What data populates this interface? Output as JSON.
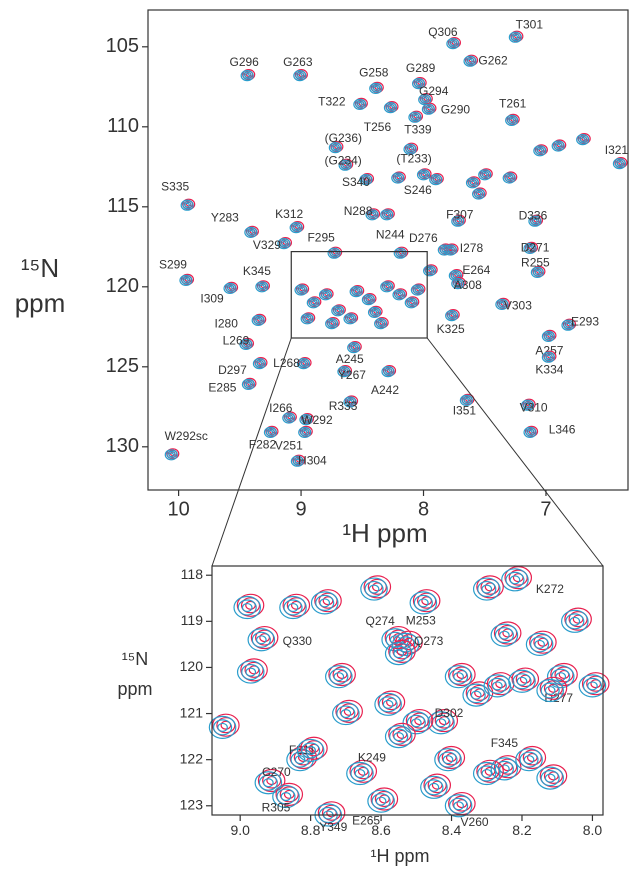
{
  "chart_data": [
    {
      "type": "scatter",
      "x_label": "¹H ppm",
      "y_label": [
        "¹⁵N",
        "ppm"
      ],
      "xlim": [
        10.25,
        6.33
      ],
      "ylim": [
        102.7,
        132.7
      ],
      "xticks": [
        10,
        9,
        8,
        7
      ],
      "yticks": [
        105,
        110,
        115,
        120,
        125,
        130
      ],
      "colors": [
        "#e8204f",
        "#2a9dcc"
      ],
      "labels": [
        "T301",
        "Q306",
        "G262",
        "G296",
        "G263",
        "G258",
        "G289",
        "G294",
        "T322",
        "G290",
        "T256",
        "T339",
        "T261",
        "(G236)",
        "(G234)",
        "(T233)",
        "I321",
        "S340",
        "S246",
        "S335",
        "Y283",
        "K312",
        "N288",
        "F307",
        "D336",
        "F295",
        "N244",
        "D276",
        "V329",
        "I278",
        "D271",
        "S299",
        "K345",
        "E264",
        "R255",
        "I309",
        "A308",
        "V303",
        "I280",
        "K325",
        "E293",
        "L269",
        "A257",
        "L268",
        "A245",
        "Y267",
        "D297",
        "K334",
        "A242",
        "E285",
        "R333",
        "I351",
        "V310",
        "I266",
        "W292",
        "L346",
        "F282",
        "V251",
        "W292sc",
        "H304",
        null,
        null,
        null,
        null,
        null,
        null,
        null,
        null,
        null,
        null,
        null,
        null,
        null,
        null,
        null,
        null,
        null,
        null,
        null,
        null,
        null,
        null,
        null,
        null,
        null,
        null
      ],
      "x": [
        7.25,
        7.76,
        7.62,
        9.44,
        9.01,
        8.39,
        8.04,
        7.99,
        8.52,
        7.96,
        8.27,
        8.07,
        7.28,
        8.72,
        8.64,
        8.11,
        6.4,
        8.47,
        8.21,
        9.93,
        9.41,
        9.04,
        8.42,
        7.72,
        7.09,
        8.73,
        8.19,
        7.83,
        9.14,
        7.78,
        7.13,
        9.94,
        9.32,
        7.74,
        7.07,
        9.58,
        7.72,
        7.36,
        9.35,
        7.77,
        6.82,
        9.45,
        6.98,
        8.98,
        8.57,
        8.65,
        9.34,
        6.98,
        8.29,
        9.43,
        8.6,
        7.65,
        7.15,
        9.1,
        8.96,
        7.13,
        9.25,
        8.97,
        10.06,
        9.03,
        9.0,
        8.9,
        8.8,
        8.7,
        8.6,
        8.55,
        8.45,
        8.4,
        8.3,
        8.2,
        8.1,
        8.05,
        8.75,
        8.95,
        8.35,
        7.6,
        7.5,
        7.3,
        7.05,
        6.9,
        6.7,
        7.9,
        8.0,
        7.55,
        8.3,
        7.95
      ],
      "y": [
        104.4,
        104.8,
        105.9,
        106.8,
        106.8,
        107.6,
        107.3,
        108.3,
        108.6,
        108.9,
        108.8,
        109.4,
        109.6,
        111.3,
        112.4,
        111.4,
        112.3,
        113.3,
        113.2,
        114.9,
        116.6,
        116.3,
        115.5,
        115.9,
        115.9,
        117.9,
        117.9,
        117.7,
        117.3,
        117.7,
        117.6,
        119.6,
        120.0,
        119.3,
        119.1,
        120.1,
        119.8,
        121.1,
        122.1,
        121.8,
        122.4,
        123.6,
        123.1,
        124.8,
        123.8,
        125.3,
        124.8,
        124.4,
        125.3,
        126.1,
        127.2,
        127.1,
        127.4,
        128.2,
        128.3,
        129.1,
        129.1,
        129.1,
        130.5,
        130.9,
        120.2,
        121.0,
        120.5,
        121.5,
        122.0,
        120.3,
        120.8,
        121.6,
        120.0,
        120.5,
        121.0,
        120.2,
        122.3,
        122.0,
        122.3,
        113.5,
        113.0,
        113.2,
        111.5,
        111.2,
        110.8,
        113.3,
        113.0,
        114.2,
        115.5,
        119.0
      ]
    },
    {
      "type": "scatter",
      "x_label": "¹H ppm",
      "y_label": [
        "¹⁵N",
        "ppm"
      ],
      "xlim": [
        9.08,
        7.97
      ],
      "ylim": [
        117.8,
        123.2
      ],
      "xticks": [
        {
          "value": 9,
          "label": "9.0"
        },
        8.8,
        8.6,
        8.4,
        8.2,
        {
          "value": 8,
          "label": "8.0"
        }
      ],
      "yticks": [
        118,
        119,
        120,
        121,
        122,
        123
      ],
      "colors": [
        "#e8204f",
        "#2a9dcc"
      ],
      "labels": [
        "K272",
        "Q274",
        "M253",
        "Q273",
        "Q330",
        "D277",
        "D302",
        "F311",
        "K249",
        "C270",
        "F345",
        "R305",
        "E265",
        "Y349",
        "V260",
        null,
        null,
        null,
        null,
        null,
        null,
        null,
        null,
        null,
        null,
        null,
        null,
        null,
        null,
        null,
        null,
        null,
        null,
        null,
        null,
        null,
        null,
        null,
        null,
        null,
        null,
        null,
        null
      ],
      "x": [
        8.22,
        8.56,
        8.53,
        8.55,
        8.94,
        8.09,
        8.43,
        8.83,
        8.66,
        8.92,
        8.25,
        8.87,
        8.6,
        8.75,
        8.38,
        8.98,
        8.85,
        8.76,
        8.62,
        8.48,
        8.3,
        8.25,
        8.15,
        8.05,
        9.05,
        8.97,
        8.72,
        8.7,
        8.58,
        8.5,
        8.38,
        8.33,
        8.27,
        8.2,
        8.12,
        8.0,
        8.41,
        8.45,
        8.3,
        8.18,
        8.12,
        8.8,
        8.55
      ],
      "y": [
        118.1,
        119.4,
        119.5,
        119.7,
        119.4,
        120.2,
        121.2,
        122.0,
        122.3,
        122.5,
        122.2,
        122.8,
        122.9,
        123.2,
        123.0,
        118.7,
        118.7,
        118.6,
        118.3,
        118.6,
        118.3,
        119.3,
        119.5,
        119.0,
        121.3,
        120.1,
        120.2,
        121.0,
        120.8,
        121.2,
        120.2,
        120.6,
        120.4,
        120.3,
        120.5,
        120.4,
        122.0,
        122.6,
        122.3,
        122.0,
        122.4,
        121.8,
        121.5
      ]
    }
  ]
}
